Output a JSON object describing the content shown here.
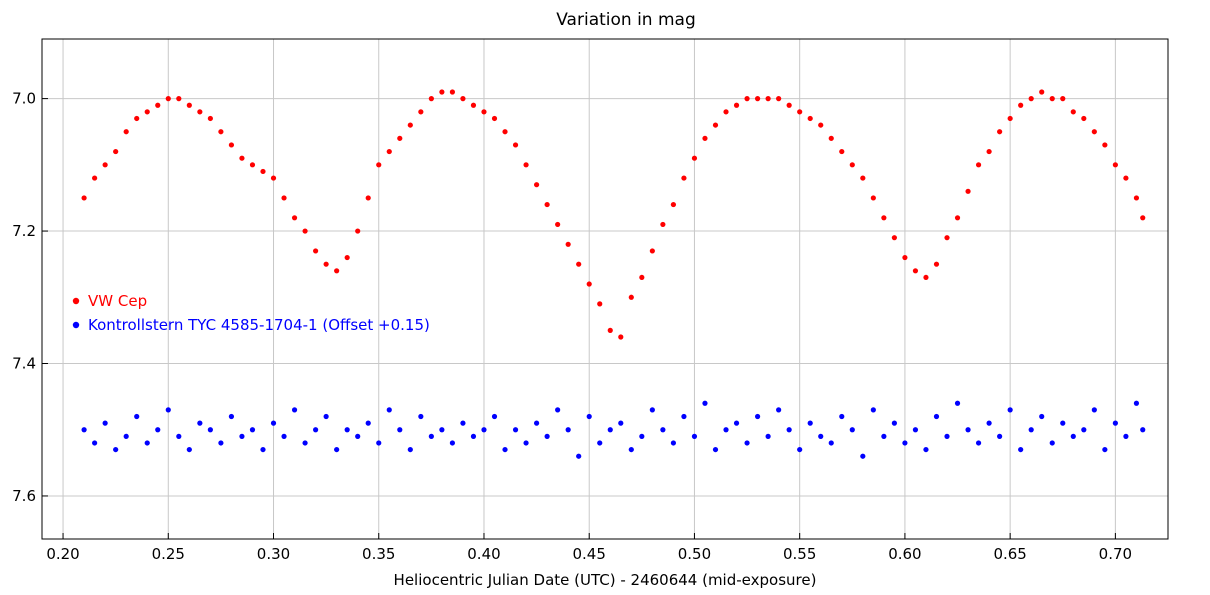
{
  "chart_data": {
    "type": "scatter",
    "title": "Variation in mag",
    "xlabel": "Heliocentric Julian Date (UTC) - 2460644 (mid-exposure)",
    "ylabel": "",
    "xlim": [
      0.19,
      0.725
    ],
    "ylim": [
      7.665,
      6.91
    ],
    "y_inverted": true,
    "grid": true,
    "x_ticks": [
      0.2,
      0.25,
      0.3,
      0.35,
      0.4,
      0.45,
      0.5,
      0.55,
      0.6,
      0.65,
      0.7
    ],
    "x_tick_labels": [
      "0.20",
      "0.25",
      "0.30",
      "0.35",
      "0.40",
      "0.45",
      "0.50",
      "0.55",
      "0.60",
      "0.65",
      "0.70"
    ],
    "y_ticks": [
      7.0,
      7.2,
      7.4,
      7.6
    ],
    "y_tick_labels": [
      "7.0",
      "7.2",
      "7.4",
      "7.6"
    ],
    "legend_position": "left",
    "series": [
      {
        "name": "VW Cep",
        "color": "#ff0000",
        "x": [
          0.21,
          0.215,
          0.22,
          0.225,
          0.23,
          0.235,
          0.24,
          0.245,
          0.25,
          0.255,
          0.26,
          0.265,
          0.27,
          0.275,
          0.28,
          0.285,
          0.29,
          0.295,
          0.3,
          0.305,
          0.31,
          0.315,
          0.32,
          0.325,
          0.33,
          0.335,
          0.34,
          0.345,
          0.35,
          0.355,
          0.36,
          0.365,
          0.37,
          0.375,
          0.38,
          0.385,
          0.39,
          0.395,
          0.4,
          0.405,
          0.41,
          0.415,
          0.42,
          0.425,
          0.43,
          0.435,
          0.44,
          0.445,
          0.45,
          0.455,
          0.46,
          0.465,
          0.47,
          0.475,
          0.48,
          0.485,
          0.49,
          0.495,
          0.5,
          0.505,
          0.51,
          0.515,
          0.52,
          0.525,
          0.53,
          0.535,
          0.54,
          0.545,
          0.55,
          0.555,
          0.56,
          0.565,
          0.57,
          0.575,
          0.58,
          0.585,
          0.59,
          0.595,
          0.6,
          0.605,
          0.61,
          0.615,
          0.62,
          0.625,
          0.63,
          0.635,
          0.64,
          0.645,
          0.65,
          0.655,
          0.66,
          0.665,
          0.67,
          0.675,
          0.68,
          0.685,
          0.69,
          0.695,
          0.7,
          0.705,
          0.71,
          0.713
        ],
        "y": [
          7.15,
          7.12,
          7.1,
          7.08,
          7.05,
          7.03,
          7.02,
          7.01,
          7.0,
          7.0,
          7.01,
          7.02,
          7.03,
          7.05,
          7.07,
          7.09,
          7.1,
          7.11,
          7.12,
          7.15,
          7.18,
          7.2,
          7.23,
          7.25,
          7.26,
          7.24,
          7.2,
          7.15,
          7.1,
          7.08,
          7.06,
          7.04,
          7.02,
          7.0,
          6.99,
          6.99,
          7.0,
          7.01,
          7.02,
          7.03,
          7.05,
          7.07,
          7.1,
          7.13,
          7.16,
          7.19,
          7.22,
          7.25,
          7.28,
          7.31,
          7.35,
          7.36,
          7.3,
          7.27,
          7.23,
          7.19,
          7.16,
          7.12,
          7.09,
          7.06,
          7.04,
          7.02,
          7.01,
          7.0,
          7.0,
          7.0,
          7.0,
          7.01,
          7.02,
          7.03,
          7.04,
          7.06,
          7.08,
          7.1,
          7.12,
          7.15,
          7.18,
          7.21,
          7.24,
          7.26,
          7.27,
          7.25,
          7.21,
          7.18,
          7.14,
          7.1,
          7.08,
          7.05,
          7.03,
          7.01,
          7.0,
          6.99,
          7.0,
          7.0,
          7.02,
          7.03,
          7.05,
          7.07,
          7.1,
          7.12,
          7.15,
          7.18
        ]
      },
      {
        "name": "Kontrollstern TYC 4585-1704-1 (Offset +0.15)",
        "color": "#0000ff",
        "x": [
          0.21,
          0.215,
          0.22,
          0.225,
          0.23,
          0.235,
          0.24,
          0.245,
          0.25,
          0.255,
          0.26,
          0.265,
          0.27,
          0.275,
          0.28,
          0.285,
          0.29,
          0.295,
          0.3,
          0.305,
          0.31,
          0.315,
          0.32,
          0.325,
          0.33,
          0.335,
          0.34,
          0.345,
          0.35,
          0.355,
          0.36,
          0.365,
          0.37,
          0.375,
          0.38,
          0.385,
          0.39,
          0.395,
          0.4,
          0.405,
          0.41,
          0.415,
          0.42,
          0.425,
          0.43,
          0.435,
          0.44,
          0.445,
          0.45,
          0.455,
          0.46,
          0.465,
          0.47,
          0.475,
          0.48,
          0.485,
          0.49,
          0.495,
          0.5,
          0.505,
          0.51,
          0.515,
          0.52,
          0.525,
          0.53,
          0.535,
          0.54,
          0.545,
          0.55,
          0.555,
          0.56,
          0.565,
          0.57,
          0.575,
          0.58,
          0.585,
          0.59,
          0.595,
          0.6,
          0.605,
          0.61,
          0.615,
          0.62,
          0.625,
          0.63,
          0.635,
          0.64,
          0.645,
          0.65,
          0.655,
          0.66,
          0.665,
          0.67,
          0.675,
          0.68,
          0.685,
          0.69,
          0.695,
          0.7,
          0.705,
          0.71,
          0.713
        ],
        "y": [
          7.5,
          7.52,
          7.49,
          7.53,
          7.51,
          7.48,
          7.52,
          7.5,
          7.47,
          7.51,
          7.53,
          7.49,
          7.5,
          7.52,
          7.48,
          7.51,
          7.5,
          7.53,
          7.49,
          7.51,
          7.47,
          7.52,
          7.5,
          7.48,
          7.53,
          7.5,
          7.51,
          7.49,
          7.52,
          7.47,
          7.5,
          7.53,
          7.48,
          7.51,
          7.5,
          7.52,
          7.49,
          7.51,
          7.5,
          7.48,
          7.53,
          7.5,
          7.52,
          7.49,
          7.51,
          7.47,
          7.5,
          7.54,
          7.48,
          7.52,
          7.5,
          7.49,
          7.53,
          7.51,
          7.47,
          7.5,
          7.52,
          7.48,
          7.51,
          7.46,
          7.53,
          7.5,
          7.49,
          7.52,
          7.48,
          7.51,
          7.47,
          7.5,
          7.53,
          7.49,
          7.51,
          7.52,
          7.48,
          7.5,
          7.54,
          7.47,
          7.51,
          7.49,
          7.52,
          7.5,
          7.53,
          7.48,
          7.51,
          7.46,
          7.5,
          7.52,
          7.49,
          7.51,
          7.47,
          7.53,
          7.5,
          7.48,
          7.52,
          7.49,
          7.51,
          7.5,
          7.47,
          7.53,
          7.49,
          7.51,
          7.46,
          7.5
        ]
      }
    ]
  }
}
